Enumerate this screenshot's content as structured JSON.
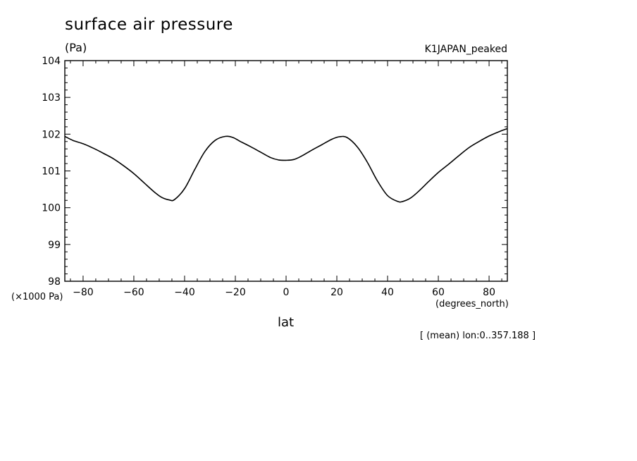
{
  "chart_data": {
    "type": "line",
    "title": "surface air pressure",
    "unit_label": "(Pa)",
    "run_label": "K1JAPAN_peaked",
    "scale_note": "(×1000 Pa)",
    "xlabel": "lat",
    "xunit": "(degrees_north)",
    "footnote": "[ (mean) lon:0..357.188 ]",
    "xlim": [
      -87.2,
      87.2
    ],
    "ylim": [
      98,
      104
    ],
    "xticks": [
      -80,
      -60,
      -40,
      -20,
      0,
      20,
      40,
      60,
      80
    ],
    "xtick_labels": [
      "−80",
      "−60",
      "−40",
      "−20",
      "0",
      "20",
      "40",
      "60",
      "80"
    ],
    "yticks": [
      98,
      99,
      100,
      101,
      102,
      103,
      104
    ],
    "ytick_labels": [
      "98",
      "99",
      "100",
      "101",
      "102",
      "103",
      "104"
    ],
    "grid": false,
    "series": [
      {
        "x": [
          -87.2,
          -84,
          -80,
          -76,
          -72,
          -68,
          -64,
          -60,
          -56,
          -52,
          -49,
          -46,
          -44,
          -40,
          -36,
          -32,
          -28,
          -24,
          -21,
          -18,
          -14,
          -10,
          -6,
          -3,
          0,
          3,
          6,
          10,
          14,
          18,
          21,
          24,
          28,
          32,
          36,
          40,
          44,
          46,
          49,
          52,
          56,
          60,
          64,
          68,
          72,
          76,
          80,
          84,
          87.2
        ],
        "y": [
          101.94,
          101.83,
          101.74,
          101.62,
          101.48,
          101.33,
          101.14,
          100.93,
          100.68,
          100.43,
          100.28,
          100.21,
          100.22,
          100.52,
          101.04,
          101.53,
          101.83,
          101.94,
          101.91,
          101.8,
          101.66,
          101.51,
          101.36,
          101.3,
          101.29,
          101.31,
          101.4,
          101.56,
          101.71,
          101.86,
          101.93,
          101.91,
          101.66,
          101.24,
          100.73,
          100.33,
          100.17,
          100.17,
          100.26,
          100.43,
          100.7,
          100.96,
          101.18,
          101.41,
          101.63,
          101.8,
          101.95,
          102.07,
          102.15
        ]
      }
    ]
  }
}
